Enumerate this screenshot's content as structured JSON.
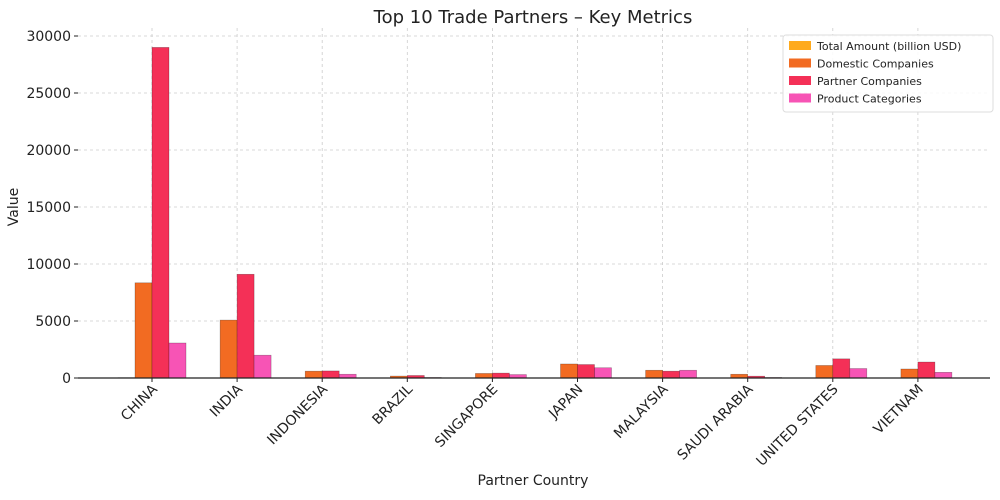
{
  "chart_data": {
    "type": "bar",
    "title": "Top 10 Trade Partners – Key Metrics",
    "xlabel": "Partner Country",
    "ylabel": "Value",
    "ylim": [
      0,
      30000
    ],
    "yticks": [
      0,
      5000,
      10000,
      15000,
      20000,
      25000,
      30000
    ],
    "grid": true,
    "legend_position": "top-right",
    "categories": [
      "CHINA",
      "INDIA",
      "INDONESIA",
      "BRAZIL",
      "SINGAPORE",
      "JAPAN",
      "MALAYSIA",
      "SAUDI ARABIA",
      "UNITED STATES",
      "VIETNAM"
    ],
    "series": [
      {
        "name": "Total Amount (billion USD)",
        "color": "#FFAA1C",
        "values": [
          30,
          15,
          5,
          2,
          4,
          8,
          5,
          4,
          10,
          8
        ]
      },
      {
        "name": "Domestic Companies",
        "color": "#F26B22",
        "values": [
          8350,
          5080,
          600,
          170,
          400,
          1230,
          680,
          330,
          1100,
          790
        ]
      },
      {
        "name": "Partner Companies",
        "color": "#F43057",
        "values": [
          29000,
          9100,
          620,
          220,
          430,
          1180,
          600,
          160,
          1680,
          1400
        ]
      },
      {
        "name": "Product Categories",
        "color": "#F754B5",
        "values": [
          3070,
          2000,
          330,
          50,
          300,
          900,
          680,
          50,
          830,
          500
        ]
      }
    ]
  }
}
